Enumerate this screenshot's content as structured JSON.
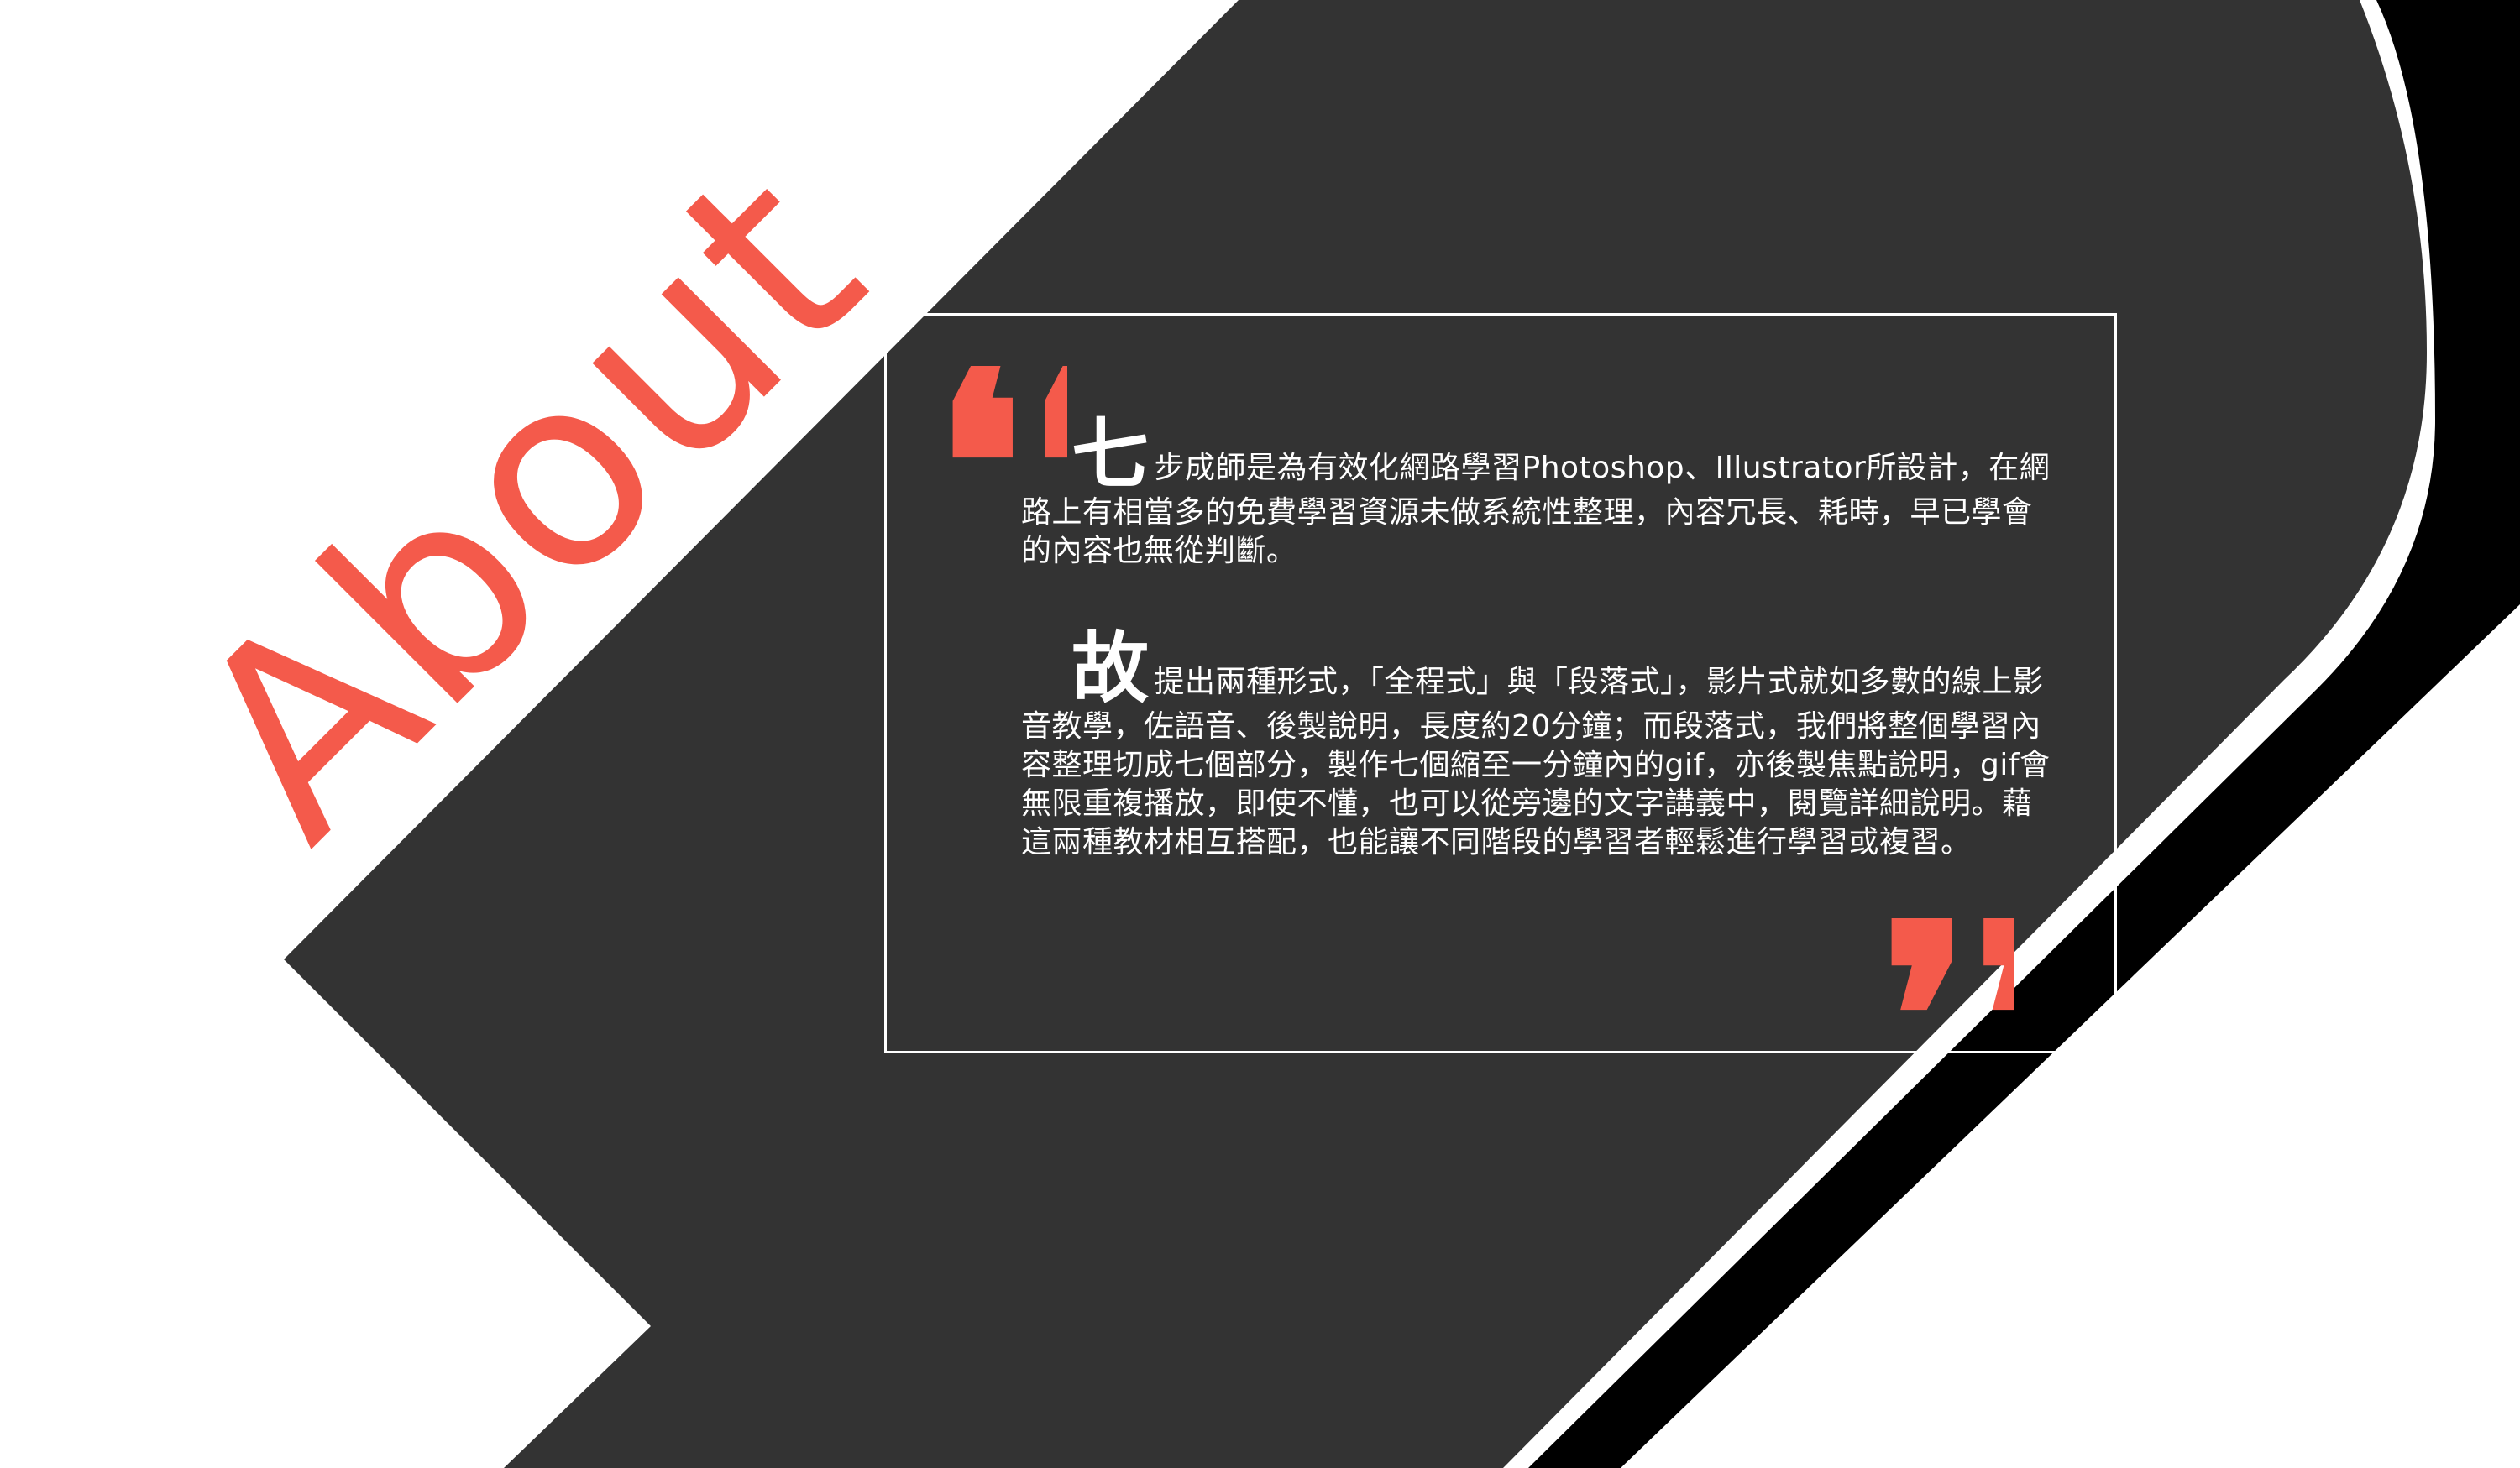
{
  "heading": {
    "text": "About",
    "color": "#f45a4b"
  },
  "quotes": {
    "open": "❛❛",
    "close": "❜❜",
    "color": "#f45a4b"
  },
  "paragraphs": [
    {
      "dropcap": "七",
      "text": "步成師是為有效化網路學習Photoshop、Illustrator所設計，在網路上有相當多的免費學習資源未做系統性整理，內容冗長、耗時，早已學會的內容也無從判斷。"
    },
    {
      "dropcap": "故",
      "text": "提出兩種形式，「全程式」與「段落式」，影片式就如多數的線上影音教學，佐語音、後製說明，長度約20分鐘；而段落式，我們將整個學習內容整理切成七個部分，製作七個縮至一分鐘內的gif，亦後製焦點說明，gif會無限重複播放，即使不懂，也可以從旁邊的文字講義中，閱覽詳細說明。藉這兩種教材相互搭配，也能讓不同階段的學習者輕鬆進行學習或複習。"
    }
  ],
  "colors": {
    "background": "#ffffff",
    "panel": "#333333",
    "shadow": "#000000",
    "text": "#ffffff",
    "accent": "#f45a4b"
  }
}
